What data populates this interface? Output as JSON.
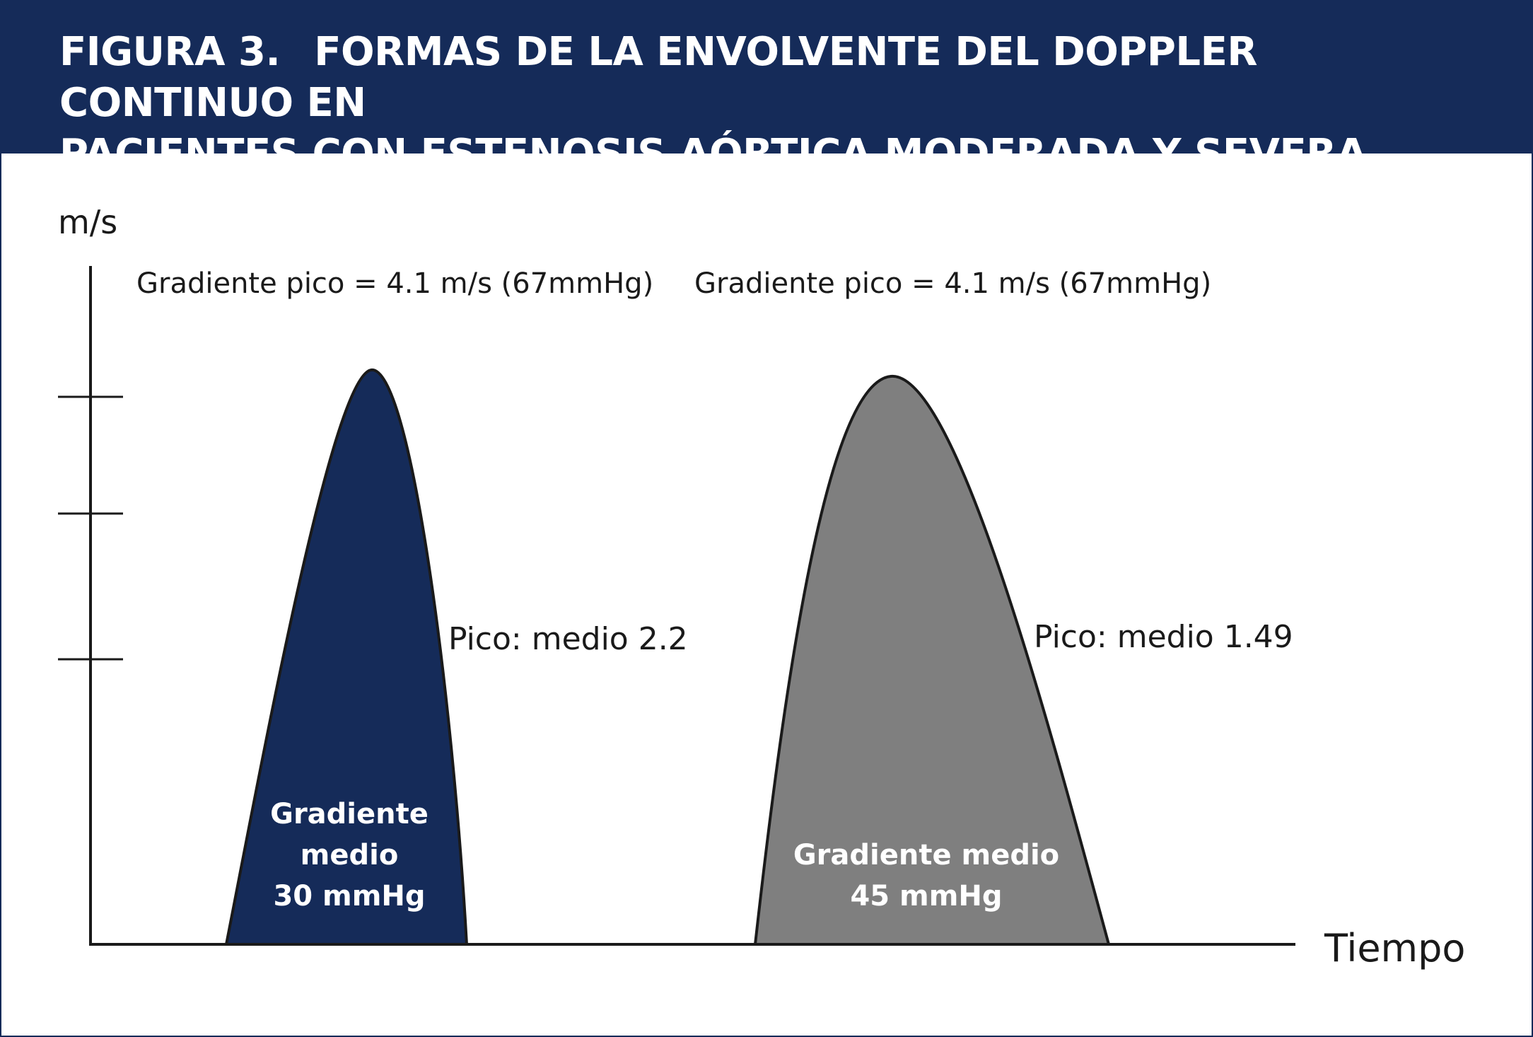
{
  "header": {
    "figure_label": "FIGURA 3.",
    "title_line1": "FORMAS DE LA ENVOLVENTE DEL DOPPLER CONTINUO EN",
    "title_line2": "PACIENTES CON ESTENOSIS AÓRTICA MODERADA Y SEVERA"
  },
  "axes": {
    "y_unit": "m/s",
    "x_label": "Tiempo"
  },
  "curves": [
    {
      "top_label": "Gradiente pico = 4.1 m/s (67mmHg)",
      "ratio_label": "Pico: medio 2.2",
      "inner_lines": [
        "Gradiente",
        "medio",
        "30 mmHg"
      ],
      "fill": "#152b59"
    },
    {
      "top_label": "Gradiente pico = 4.1 m/s (67mmHg)",
      "ratio_label": "Pico: medio 1.49",
      "inner_lines": [
        "Gradiente medio",
        "45 mmHg"
      ],
      "fill": "#7f7f7f"
    }
  ],
  "colors": {
    "header_bg": "#152b59",
    "axis": "#1a1a1a",
    "curve_outline": "#1a1a1a"
  }
}
